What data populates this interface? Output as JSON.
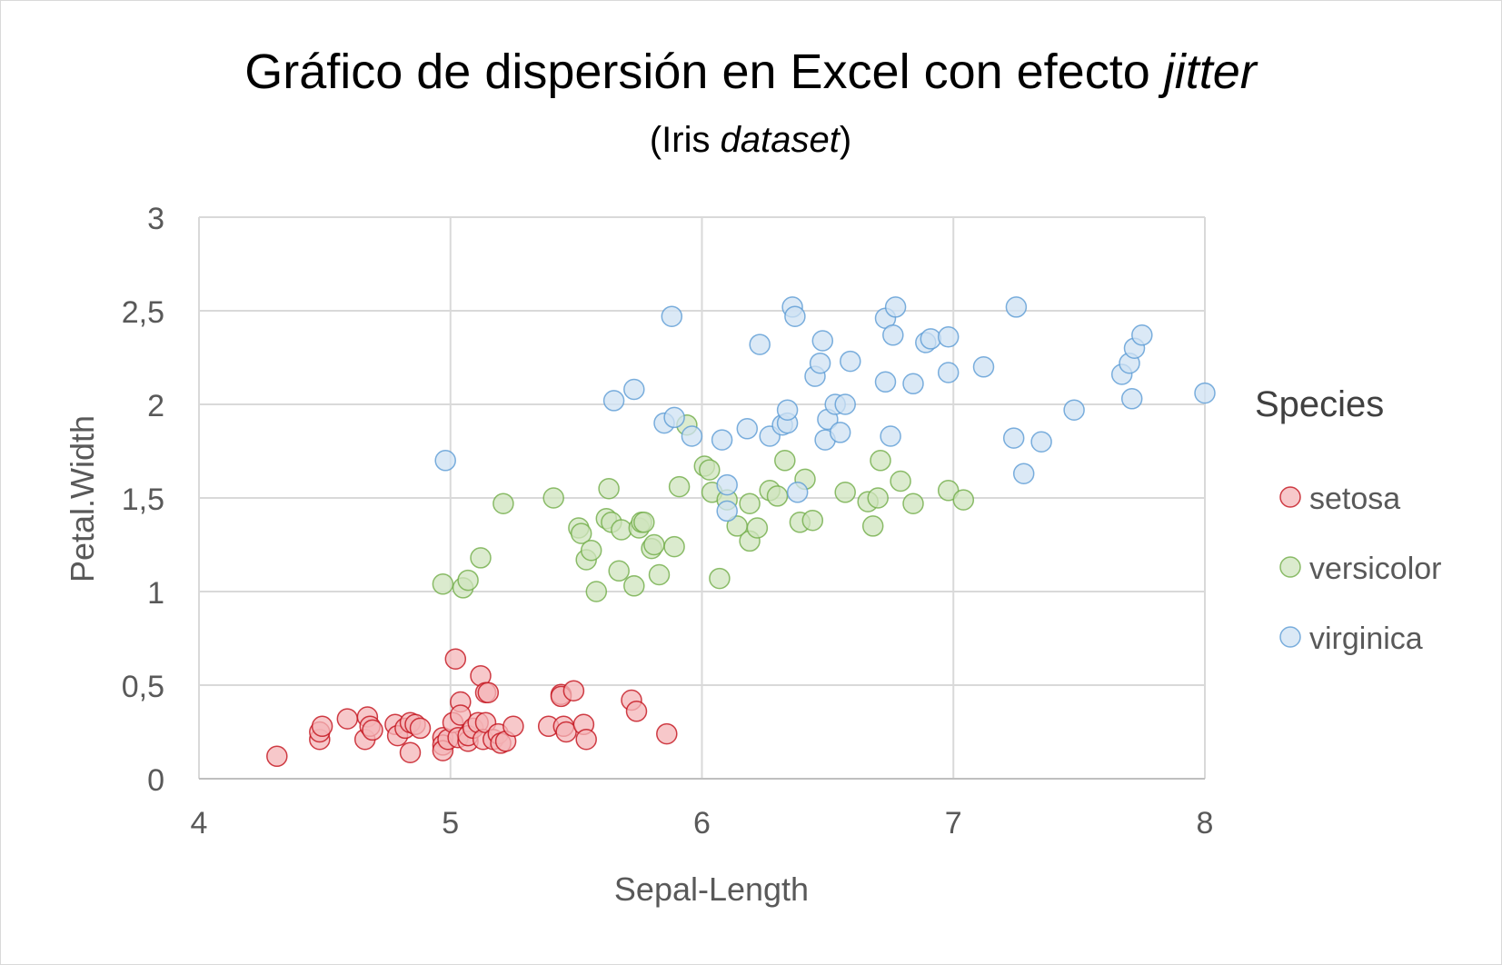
{
  "chart_data": {
    "type": "scatter",
    "title": {
      "main": "Gráfico de dispersión en Excel con efecto ",
      "main_italic": "jitter",
      "sub_open": "(Iris ",
      "sub_italic": "dataset",
      "sub_close": ")"
    },
    "xlabel": "Sepal-Length",
    "ylabel": "Petal.Width",
    "xlim": [
      4,
      8
    ],
    "ylim": [
      0,
      3
    ],
    "x_ticks": [
      {
        "value": 4,
        "label": "4"
      },
      {
        "value": 5,
        "label": "5"
      },
      {
        "value": 6,
        "label": "6"
      },
      {
        "value": 7,
        "label": "7"
      },
      {
        "value": 8,
        "label": "8"
      }
    ],
    "y_ticks": [
      {
        "value": 0,
        "label": "0"
      },
      {
        "value": 0.5,
        "label": "0,5"
      },
      {
        "value": 1,
        "label": "1"
      },
      {
        "value": 1.5,
        "label": "1,5"
      },
      {
        "value": 2,
        "label": "2"
      },
      {
        "value": 2.5,
        "label": "2,5"
      },
      {
        "value": 3,
        "label": "3"
      }
    ],
    "grid": true,
    "legend": {
      "title": "Species",
      "placement": "right"
    },
    "series": [
      {
        "name": "setosa",
        "fill": "#f4b6b8",
        "stroke": "#c3101a",
        "points": [
          [
            4.31,
            0.12
          ],
          [
            4.48,
            0.21
          ],
          [
            4.48,
            0.25
          ],
          [
            4.49,
            0.28
          ],
          [
            4.59,
            0.32
          ],
          [
            4.66,
            0.21
          ],
          [
            4.67,
            0.33
          ],
          [
            4.68,
            0.28
          ],
          [
            4.69,
            0.26
          ],
          [
            4.78,
            0.29
          ],
          [
            4.79,
            0.23
          ],
          [
            4.82,
            0.27
          ],
          [
            4.84,
            0.3
          ],
          [
            4.84,
            0.14
          ],
          [
            4.86,
            0.29
          ],
          [
            4.88,
            0.27
          ],
          [
            4.97,
            0.22
          ],
          [
            4.97,
            0.18
          ],
          [
            4.97,
            0.15
          ],
          [
            4.99,
            0.21
          ],
          [
            5.01,
            0.3
          ],
          [
            5.02,
            0.64
          ],
          [
            5.03,
            0.22
          ],
          [
            5.04,
            0.41
          ],
          [
            5.04,
            0.34
          ],
          [
            5.07,
            0.2
          ],
          [
            5.07,
            0.23
          ],
          [
            5.09,
            0.27
          ],
          [
            5.11,
            0.3
          ],
          [
            5.13,
            0.21
          ],
          [
            5.12,
            0.55
          ],
          [
            5.14,
            0.3
          ],
          [
            5.14,
            0.46
          ],
          [
            5.15,
            0.46
          ],
          [
            5.17,
            0.21
          ],
          [
            5.19,
            0.24
          ],
          [
            5.2,
            0.19
          ],
          [
            5.22,
            0.2
          ],
          [
            5.25,
            0.28
          ],
          [
            5.39,
            0.28
          ],
          [
            5.44,
            0.45
          ],
          [
            5.44,
            0.44
          ],
          [
            5.45,
            0.28
          ],
          [
            5.46,
            0.25
          ],
          [
            5.49,
            0.47
          ],
          [
            5.53,
            0.29
          ],
          [
            5.54,
            0.21
          ],
          [
            5.72,
            0.42
          ],
          [
            5.74,
            0.36
          ],
          [
            5.86,
            0.24
          ]
        ]
      },
      {
        "name": "versicolor",
        "fill": "#cfe4bd",
        "stroke": "#70ad47",
        "points": [
          [
            4.97,
            1.04
          ],
          [
            5.05,
            1.02
          ],
          [
            5.07,
            1.06
          ],
          [
            5.12,
            1.18
          ],
          [
            5.21,
            1.47
          ],
          [
            5.41,
            1.5
          ],
          [
            5.51,
            1.34
          ],
          [
            5.52,
            1.31
          ],
          [
            5.54,
            1.17
          ],
          [
            5.56,
            1.22
          ],
          [
            5.58,
            1.0
          ],
          [
            5.62,
            1.39
          ],
          [
            5.63,
            1.55
          ],
          [
            5.64,
            1.37
          ],
          [
            5.67,
            1.11
          ],
          [
            5.68,
            1.33
          ],
          [
            5.73,
            1.03
          ],
          [
            5.75,
            1.34
          ],
          [
            5.76,
            1.37
          ],
          [
            5.77,
            1.37
          ],
          [
            5.8,
            1.23
          ],
          [
            5.81,
            1.25
          ],
          [
            5.83,
            1.09
          ],
          [
            5.89,
            1.24
          ],
          [
            5.91,
            1.56
          ],
          [
            5.94,
            1.89
          ],
          [
            6.01,
            1.67
          ],
          [
            6.03,
            1.65
          ],
          [
            6.04,
            1.53
          ],
          [
            6.07,
            1.07
          ],
          [
            6.1,
            1.49
          ],
          [
            6.14,
            1.35
          ],
          [
            6.19,
            1.27
          ],
          [
            6.19,
            1.47
          ],
          [
            6.22,
            1.34
          ],
          [
            6.27,
            1.54
          ],
          [
            6.3,
            1.51
          ],
          [
            6.33,
            1.7
          ],
          [
            6.39,
            1.37
          ],
          [
            6.41,
            1.6
          ],
          [
            6.44,
            1.38
          ],
          [
            6.57,
            1.53
          ],
          [
            6.66,
            1.48
          ],
          [
            6.68,
            1.35
          ],
          [
            6.7,
            1.5
          ],
          [
            6.71,
            1.7
          ],
          [
            6.79,
            1.59
          ],
          [
            6.84,
            1.47
          ],
          [
            6.98,
            1.54
          ],
          [
            7.04,
            1.49
          ]
        ]
      },
      {
        "name": "virginica",
        "fill": "#cfe2f3",
        "stroke": "#5b9bd5",
        "points": [
          [
            4.98,
            1.7
          ],
          [
            5.65,
            2.02
          ],
          [
            5.73,
            2.08
          ],
          [
            5.85,
            1.9
          ],
          [
            5.88,
            2.47
          ],
          [
            5.89,
            1.93
          ],
          [
            5.96,
            1.83
          ],
          [
            6.08,
            1.81
          ],
          [
            6.1,
            1.57
          ],
          [
            6.1,
            1.43
          ],
          [
            6.18,
            1.87
          ],
          [
            6.23,
            2.32
          ],
          [
            6.27,
            1.83
          ],
          [
            6.32,
            1.89
          ],
          [
            6.34,
            1.9
          ],
          [
            6.34,
            1.97
          ],
          [
            6.36,
            2.52
          ],
          [
            6.37,
            2.47
          ],
          [
            6.38,
            1.53
          ],
          [
            6.45,
            2.15
          ],
          [
            6.47,
            2.22
          ],
          [
            6.48,
            2.34
          ],
          [
            6.49,
            1.81
          ],
          [
            6.5,
            1.92
          ],
          [
            6.53,
            2.0
          ],
          [
            6.55,
            1.85
          ],
          [
            6.57,
            2.0
          ],
          [
            6.59,
            2.23
          ],
          [
            6.73,
            2.46
          ],
          [
            6.73,
            2.12
          ],
          [
            6.75,
            1.83
          ],
          [
            6.76,
            2.37
          ],
          [
            6.77,
            2.52
          ],
          [
            6.84,
            2.11
          ],
          [
            6.89,
            2.33
          ],
          [
            6.91,
            2.35
          ],
          [
            6.98,
            2.17
          ],
          [
            6.98,
            2.36
          ],
          [
            7.12,
            2.2
          ],
          [
            7.24,
            1.82
          ],
          [
            7.25,
            2.52
          ],
          [
            7.28,
            1.63
          ],
          [
            7.35,
            1.8
          ],
          [
            7.48,
            1.97
          ],
          [
            7.67,
            2.16
          ],
          [
            7.7,
            2.22
          ],
          [
            7.71,
            2.03
          ],
          [
            7.72,
            2.3
          ],
          [
            7.75,
            2.37
          ],
          [
            8.0,
            2.06
          ]
        ]
      }
    ]
  }
}
